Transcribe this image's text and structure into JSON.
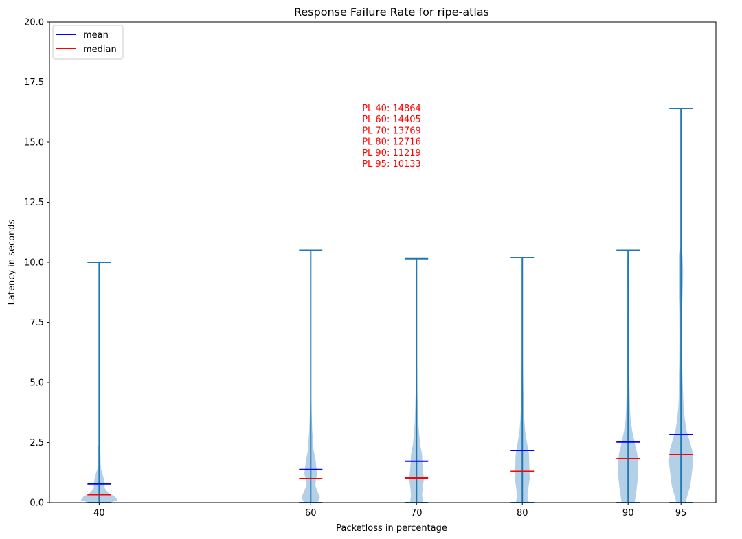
{
  "chart_data": {
    "type": "violin",
    "title": "Response Failure Rate for ripe-atlas",
    "xlabel": "Packetloss in percentage",
    "ylabel": "Latency in seconds",
    "ylim": [
      0,
      20
    ],
    "yticks": [
      "0.0",
      "2.5",
      "5.0",
      "7.5",
      "10.0",
      "12.5",
      "15.0",
      "17.5",
      "20.0"
    ],
    "xlim": [
      35.3,
      98.3
    ],
    "grid": false,
    "legend": {
      "placement": "top-left",
      "entries": [
        {
          "label": "mean",
          "color": "#0000ff"
        },
        {
          "label": "median",
          "color": "#ff0000"
        }
      ]
    },
    "colors": {
      "body": "#b4d0e6",
      "stem": "#1f77b4",
      "mean": "#0000ff",
      "median": "#ff0000",
      "annotation": "#ff0000"
    },
    "annotation": [
      "PL 40: 14864",
      "PL 60: 14405",
      "PL 70: 13769",
      "PL 80: 12716",
      "PL 90: 11219",
      "PL 95: 10133"
    ],
    "violins": [
      {
        "x": 40,
        "label": "40",
        "min": 0.0,
        "max": 10.0,
        "mean": 0.78,
        "median": 0.33,
        "profile": [
          [
            0,
            0.6
          ],
          [
            0.1,
            1.0
          ],
          [
            0.25,
            0.85
          ],
          [
            0.4,
            0.5
          ],
          [
            0.6,
            0.3
          ],
          [
            0.8,
            0.28
          ],
          [
            1.0,
            0.25
          ],
          [
            1.2,
            0.18
          ],
          [
            1.4,
            0.1
          ],
          [
            1.7,
            0.08
          ],
          [
            2.0,
            0.07
          ],
          [
            2.3,
            0.05
          ],
          [
            2.6,
            0.0
          ]
        ]
      },
      {
        "x": 60,
        "label": "60",
        "min": 0.0,
        "max": 10.5,
        "mean": 1.38,
        "median": 1.0,
        "profile": [
          [
            0,
            0.35
          ],
          [
            0.2,
            0.5
          ],
          [
            0.4,
            0.4
          ],
          [
            0.7,
            0.25
          ],
          [
            1.0,
            0.28
          ],
          [
            1.2,
            0.35
          ],
          [
            1.5,
            0.3
          ],
          [
            1.8,
            0.25
          ],
          [
            2.2,
            0.15
          ],
          [
            2.6,
            0.12
          ],
          [
            3.0,
            0.08
          ],
          [
            3.5,
            0.06
          ],
          [
            4.0,
            0.04
          ],
          [
            4.5,
            0.02
          ],
          [
            5.0,
            0.0
          ]
        ]
      },
      {
        "x": 70,
        "label": "70",
        "min": 0.0,
        "max": 10.15,
        "mean": 1.72,
        "median": 1.03,
        "profile": [
          [
            0,
            0.35
          ],
          [
            0.3,
            0.3
          ],
          [
            0.6,
            0.33
          ],
          [
            1.0,
            0.4
          ],
          [
            1.3,
            0.35
          ],
          [
            1.6,
            0.32
          ],
          [
            2.0,
            0.3
          ],
          [
            2.4,
            0.2
          ],
          [
            2.8,
            0.15
          ],
          [
            3.3,
            0.1
          ],
          [
            4.0,
            0.07
          ],
          [
            4.5,
            0.05
          ],
          [
            5.5,
            0.03
          ],
          [
            6.5,
            0.01
          ],
          [
            7.0,
            0.0
          ]
        ]
      },
      {
        "x": 80,
        "label": "80",
        "min": 0.0,
        "max": 10.2,
        "mean": 2.17,
        "median": 1.3,
        "profile": [
          [
            0,
            0.35
          ],
          [
            0.3,
            0.28
          ],
          [
            0.6,
            0.33
          ],
          [
            1.0,
            0.4
          ],
          [
            1.5,
            0.38
          ],
          [
            2.0,
            0.36
          ],
          [
            2.5,
            0.25
          ],
          [
            3.0,
            0.15
          ],
          [
            3.5,
            0.1
          ],
          [
            4.0,
            0.08
          ],
          [
            5.0,
            0.05
          ],
          [
            6.0,
            0.03
          ],
          [
            7.0,
            0.02
          ],
          [
            8.5,
            0.015
          ],
          [
            10.0,
            0.01
          ]
        ]
      },
      {
        "x": 90,
        "label": "90",
        "min": 0.0,
        "max": 10.5,
        "mean": 2.52,
        "median": 1.83,
        "profile": [
          [
            0,
            0.35
          ],
          [
            0.5,
            0.45
          ],
          [
            1.0,
            0.52
          ],
          [
            1.5,
            0.55
          ],
          [
            2.0,
            0.5
          ],
          [
            2.5,
            0.35
          ],
          [
            3.0,
            0.22
          ],
          [
            3.5,
            0.13
          ],
          [
            4.0,
            0.1
          ],
          [
            5.0,
            0.07
          ],
          [
            6.0,
            0.06
          ],
          [
            7.0,
            0.06
          ],
          [
            8.0,
            0.07
          ],
          [
            9.0,
            0.07
          ],
          [
            10.0,
            0.05
          ],
          [
            10.5,
            0.0
          ]
        ]
      },
      {
        "x": 95,
        "label": "95",
        "min": 0.0,
        "max": 16.4,
        "mean": 2.83,
        "median": 2.0,
        "profile": [
          [
            0,
            0.25
          ],
          [
            0.3,
            0.35
          ],
          [
            0.7,
            0.5
          ],
          [
            1.2,
            0.58
          ],
          [
            1.7,
            0.65
          ],
          [
            2.2,
            0.6
          ],
          [
            2.6,
            0.45
          ],
          [
            3.0,
            0.3
          ],
          [
            3.5,
            0.2
          ],
          [
            4.0,
            0.14
          ],
          [
            5.0,
            0.09
          ],
          [
            6.0,
            0.06
          ],
          [
            7.0,
            0.05
          ],
          [
            8.0,
            0.06
          ],
          [
            9.0,
            0.1
          ],
          [
            9.6,
            0.12
          ],
          [
            10.3,
            0.08
          ],
          [
            10.8,
            0.0
          ]
        ]
      }
    ]
  }
}
